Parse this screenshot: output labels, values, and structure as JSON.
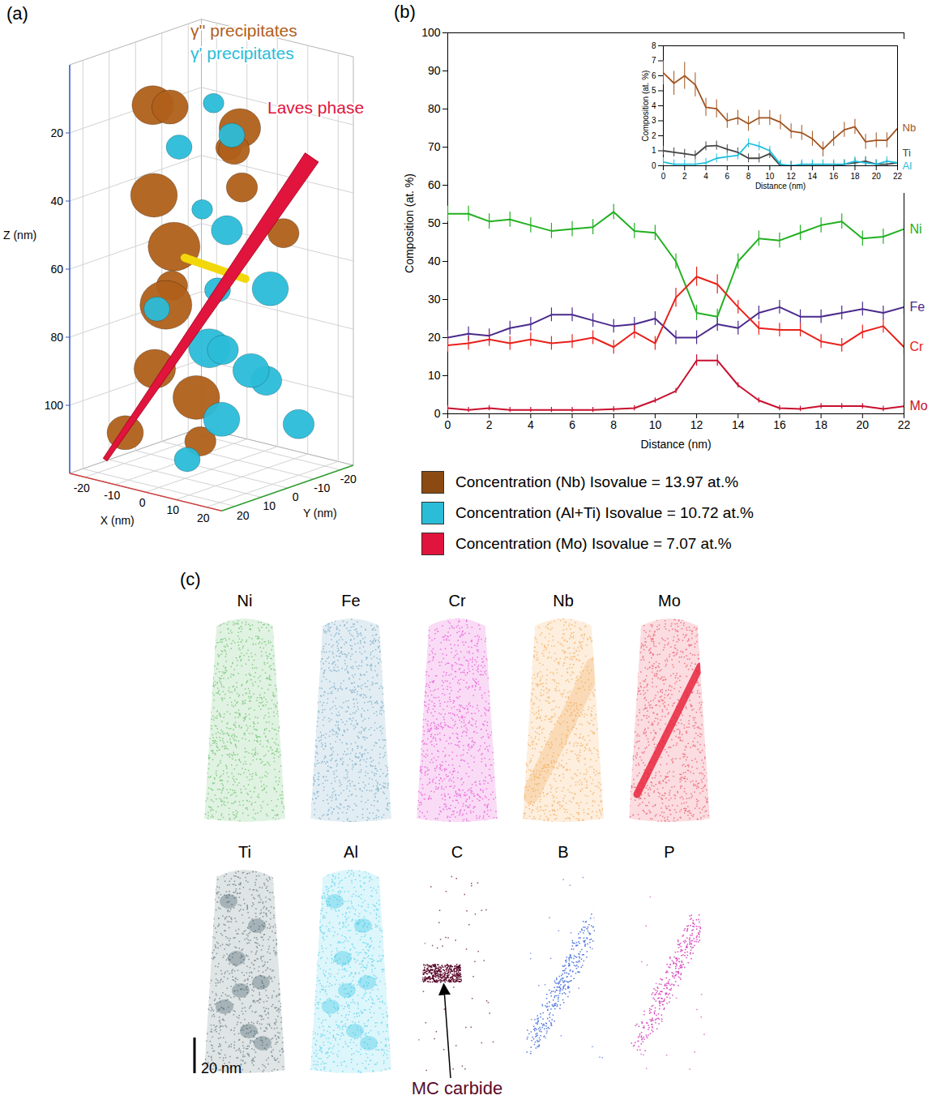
{
  "panel_a": {
    "label": "(a)",
    "x_axis": {
      "label": "X (nm)",
      "ticks": [
        -20,
        -10,
        0,
        10,
        20
      ]
    },
    "y_axis": {
      "label": "Y (nm)",
      "ticks": [
        20,
        10,
        0,
        -10,
        -20
      ]
    },
    "z_axis": {
      "label": "Z (nm)",
      "ticks": [
        20,
        40,
        60,
        80,
        100
      ]
    },
    "annotations": [
      {
        "text": "γ'' precipitates",
        "color": "#b0601a"
      },
      {
        "text": "γ' precipitates",
        "color": "#2bbcd8"
      },
      {
        "text": "Laves phase",
        "color": "#e0143c"
      }
    ],
    "isosurface_legend": [
      {
        "label": "Concentration (Nb) Isovalue = 13.97 at.%",
        "color": "#8b4a12"
      },
      {
        "label": "Concentration (Al+Ti) Isovalue = 10.72 at.%",
        "color": "#2bbcd8"
      },
      {
        "label": "Concentration (Mo) Isovalue = 7.07 at.%",
        "color": "#e0143c"
      }
    ]
  },
  "chart_data": {
    "panel_label": "(b)",
    "type": "line",
    "xlabel": "Distance (nm)",
    "ylabel": "Composition (at. %)",
    "x": [
      0,
      1,
      2,
      3,
      4,
      5,
      6,
      7,
      8,
      9,
      10,
      11,
      12,
      13,
      14,
      15,
      16,
      17,
      18,
      19,
      20,
      21,
      22
    ],
    "xlim": [
      0,
      22
    ],
    "xticks": [
      0,
      2,
      4,
      6,
      8,
      10,
      12,
      14,
      16,
      18,
      20,
      22
    ],
    "ylim": [
      0,
      100
    ],
    "yticks": [
      0,
      10,
      20,
      30,
      40,
      50,
      60,
      70,
      80,
      90,
      100
    ],
    "series": [
      {
        "name": "Ni",
        "color": "#22b022",
        "values": [
          52.5,
          52.5,
          50.5,
          51,
          49.5,
          48,
          48.5,
          49,
          53,
          48,
          47.5,
          40,
          26.5,
          25.5,
          40,
          46,
          45.5,
          47.5,
          49.5,
          50.5,
          46,
          46.5,
          48.5
        ],
        "errors": [
          2,
          2,
          2,
          2,
          2,
          2,
          2,
          2,
          2,
          2,
          2,
          2,
          2,
          2,
          2,
          2,
          2,
          2,
          2,
          2,
          2,
          2,
          2
        ]
      },
      {
        "name": "Fe",
        "color": "#4b2a8c",
        "values": [
          20,
          21,
          20.5,
          22.5,
          23.5,
          26,
          26,
          24.5,
          23,
          23.5,
          25,
          20,
          20,
          23.5,
          22.5,
          26.5,
          28,
          25.5,
          25.5,
          26.5,
          27.5,
          26.5,
          28
        ],
        "errors": [
          1.8,
          1.8,
          1.8,
          1.8,
          1.8,
          1.8,
          1.8,
          1.8,
          1.8,
          1.8,
          1.8,
          1.8,
          1.8,
          1.8,
          1.8,
          1.8,
          1.8,
          1.8,
          1.8,
          1.8,
          1.8,
          1.8,
          1.8
        ]
      },
      {
        "name": "Cr",
        "color": "#e8211b",
        "values": [
          18,
          18.5,
          19.5,
          18.5,
          19.5,
          18.5,
          19,
          20,
          17.5,
          21.5,
          18.5,
          30.5,
          36,
          34,
          28,
          22.5,
          22,
          22,
          19,
          18,
          21.5,
          23,
          17.5
        ],
        "errors": [
          1.8,
          1.8,
          1.8,
          1.8,
          1.8,
          1.8,
          1.8,
          1.8,
          1.8,
          1.8,
          1.8,
          2.5,
          2.5,
          2.5,
          1.8,
          1.8,
          1.8,
          1.8,
          1.8,
          1.8,
          1.8,
          1.8,
          1.8
        ]
      },
      {
        "name": "Mo",
        "color": "#c8102e",
        "values": [
          1.5,
          1,
          1.5,
          1,
          1,
          1,
          1,
          1,
          1.2,
          1.5,
          3.5,
          6,
          14,
          14,
          7.5,
          3.5,
          1.5,
          1.3,
          2,
          2,
          2,
          1.3,
          2
        ],
        "errors": [
          0.7,
          0.7,
          0.7,
          0.7,
          0.7,
          0.7,
          0.7,
          0.7,
          0.7,
          0.7,
          0.7,
          0.7,
          1.5,
          1.5,
          0.7,
          0.7,
          0.7,
          0.7,
          0.7,
          0.7,
          0.7,
          0.7,
          0.7
        ]
      }
    ],
    "inset": {
      "type": "line",
      "xlabel": "Distance (nm)",
      "ylabel": "Composition (at. %)",
      "x": [
        0,
        1,
        2,
        3,
        4,
        5,
        6,
        7,
        8,
        9,
        10,
        11,
        12,
        13,
        14,
        15,
        16,
        17,
        18,
        19,
        20,
        21,
        22
      ],
      "xlim": [
        0,
        22
      ],
      "xticks": [
        0,
        2,
        4,
        6,
        8,
        10,
        12,
        14,
        16,
        18,
        20,
        22
      ],
      "ylim": [
        0,
        8
      ],
      "yticks": [
        0,
        1,
        2,
        3,
        4,
        5,
        6,
        7,
        8
      ],
      "series": [
        {
          "name": "Nb",
          "color": "#a0521d",
          "values": [
            6.2,
            5.5,
            6,
            5.4,
            3.9,
            3.8,
            3,
            3.2,
            2.8,
            3.2,
            3.2,
            2.9,
            2.3,
            2.2,
            1.8,
            1.1,
            1.8,
            2.4,
            2.6,
            1.6,
            1.7,
            1.7,
            2.5
          ],
          "errors": [
            0.8,
            0.8,
            0.9,
            0.8,
            0.6,
            0.6,
            0.5,
            0.5,
            0.5,
            0.5,
            0.5,
            0.5,
            0.5,
            0.5,
            0.5,
            0.5,
            0.5,
            0.5,
            0.5,
            0.5,
            0.5,
            0.5,
            0.5
          ]
        },
        {
          "name": "Ti",
          "color": "#444444",
          "values": [
            1,
            0.9,
            0.8,
            0.7,
            1.3,
            1.35,
            1.1,
            0.9,
            0.5,
            0.5,
            0.8,
            0,
            0,
            0,
            0,
            0,
            0,
            0.1,
            0.2,
            0.3,
            0.1,
            0.1,
            0.2
          ],
          "errors": [
            0.3,
            0.3,
            0.3,
            0.3,
            0.3,
            0.3,
            0.3,
            0.3,
            0.3,
            0.3,
            0.3,
            0.3,
            0.3,
            0.3,
            0.3,
            0.3,
            0.3,
            0.3,
            0.3,
            0.3,
            0.3,
            0.3,
            0.3
          ]
        },
        {
          "name": "Al",
          "color": "#1fc0e0",
          "values": [
            0.25,
            0.1,
            0.1,
            0.1,
            0.2,
            0.5,
            0.6,
            0.7,
            1.5,
            1.3,
            1,
            0.1,
            0,
            0.1,
            0.1,
            0.1,
            0.1,
            0.1,
            0.3,
            0.2,
            0.1,
            0.3,
            0.2
          ],
          "errors": [
            0.3,
            0.3,
            0.3,
            0.3,
            0.3,
            0.3,
            0.3,
            0.3,
            0.3,
            0.3,
            0.3,
            0.3,
            0.3,
            0.3,
            0.3,
            0.3,
            0.3,
            0.3,
            0.3,
            0.3,
            0.3,
            0.3,
            0.3
          ]
        }
      ]
    }
  },
  "panel_c": {
    "label": "(c)",
    "maps": [
      {
        "element": "Ni",
        "color": "#3cb043"
      },
      {
        "element": "Fe",
        "color": "#4a8fb5"
      },
      {
        "element": "Cr",
        "color": "#e020c8"
      },
      {
        "element": "Nb",
        "color": "#f0962e"
      },
      {
        "element": "Mo",
        "color": "#e8243c"
      },
      {
        "element": "Ti",
        "color": "#3a5560"
      },
      {
        "element": "Al",
        "color": "#29c4e6"
      },
      {
        "element": "C",
        "color": "#5a0a2a"
      },
      {
        "element": "B",
        "color": "#2a5ad8"
      },
      {
        "element": "P",
        "color": "#d020b0"
      }
    ],
    "annotation": "MC carbide",
    "scale_bar": "20 nm"
  }
}
